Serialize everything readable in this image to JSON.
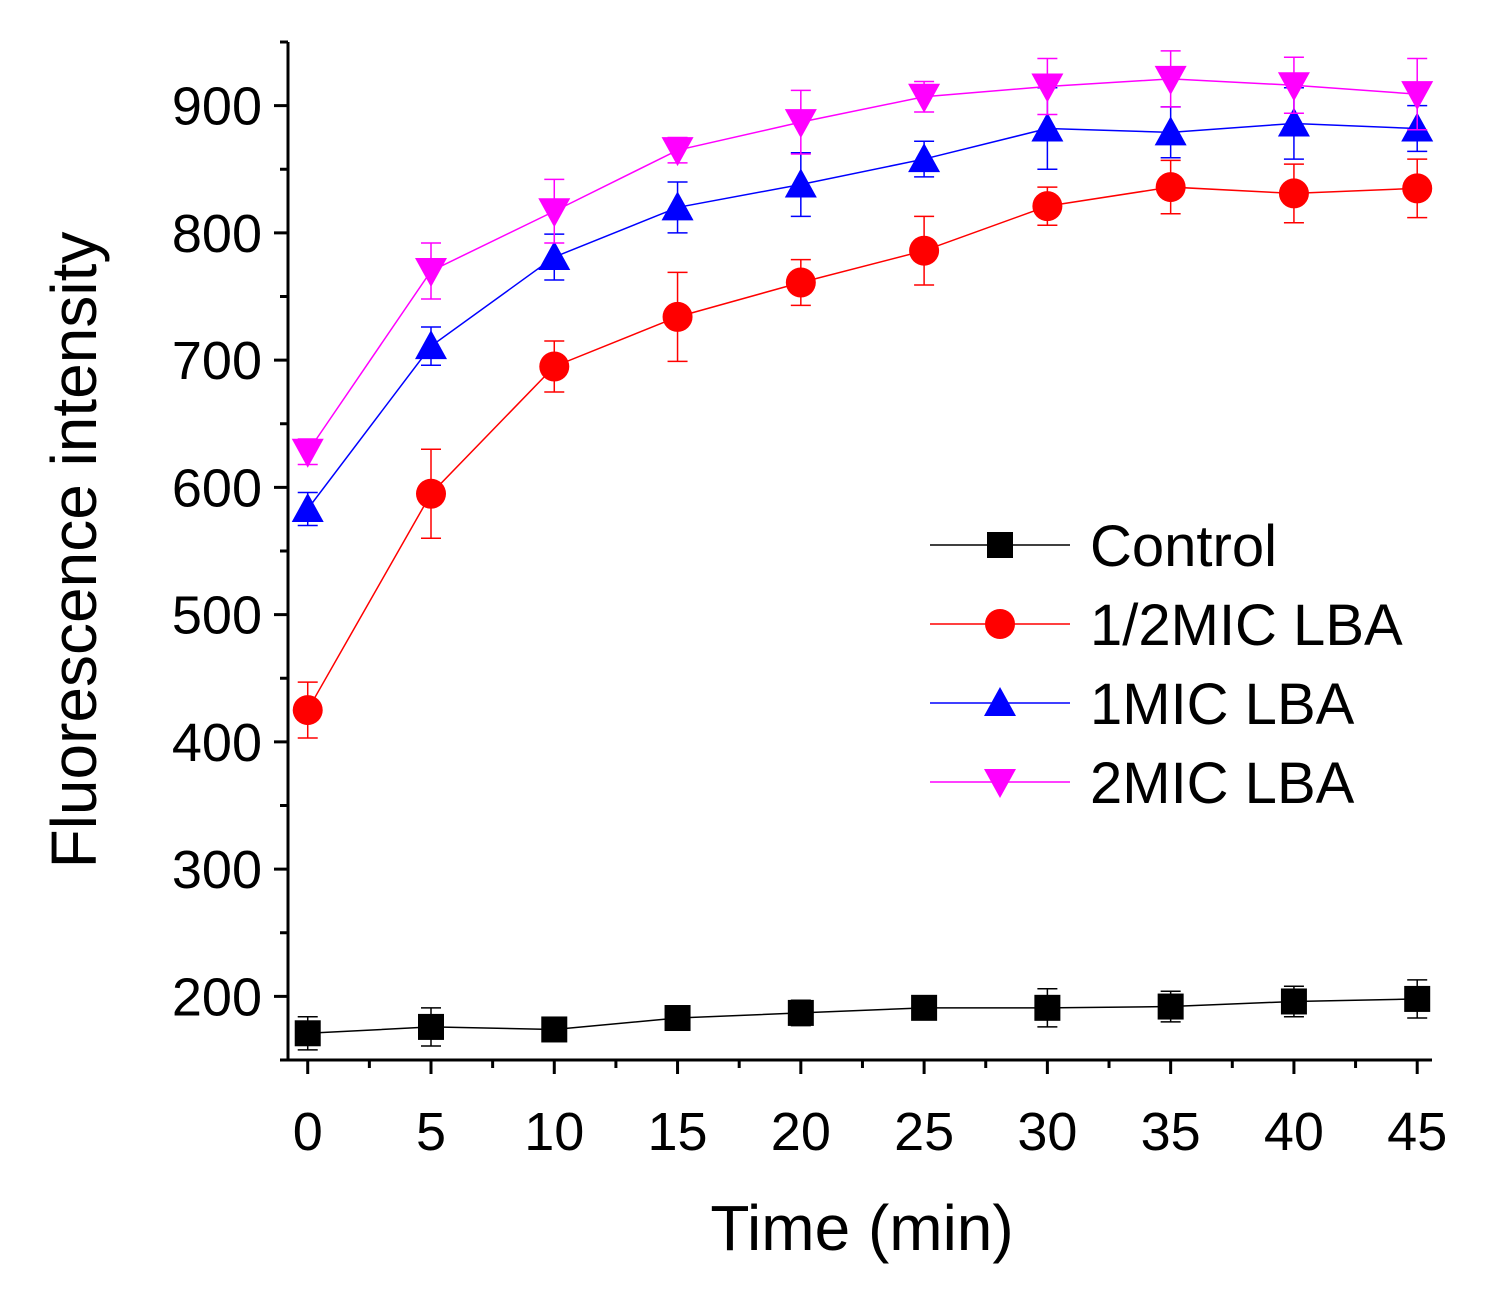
{
  "chart_data": {
    "type": "line",
    "title": "",
    "xlabel": "Time (min)",
    "ylabel": "Fluorescence intensity",
    "xlim": [
      -0.8,
      45.6
    ],
    "ylim": [
      150,
      950
    ],
    "xticks": [
      0,
      5,
      10,
      15,
      20,
      25,
      30,
      35,
      40,
      45
    ],
    "yticks": [
      200,
      300,
      400,
      500,
      600,
      700,
      800,
      900
    ],
    "grid": false,
    "legend_position": "center-right",
    "x": [
      0,
      5,
      10,
      15,
      20,
      25,
      30,
      35,
      40,
      45
    ],
    "series": [
      {
        "name": "Control",
        "color": "#000000",
        "marker": "square",
        "values": [
          171,
          176,
          174,
          183,
          187,
          191,
          191,
          192,
          196,
          198
        ],
        "errors": [
          13,
          15,
          8,
          9,
          10,
          9,
          15,
          12,
          12,
          15
        ]
      },
      {
        "name": "1/2MIC LBA",
        "color": "#ff0000",
        "marker": "circle",
        "values": [
          425,
          595,
          695,
          734,
          761,
          786,
          821,
          836,
          831,
          835
        ],
        "errors": [
          22,
          35,
          20,
          35,
          18,
          27,
          15,
          21,
          23,
          23
        ]
      },
      {
        "name": "1MIC LBA",
        "color": "#0000ff",
        "marker": "triangle-up",
        "values": [
          583,
          711,
          781,
          820,
          838,
          858,
          882,
          879,
          886,
          882
        ],
        "errors": [
          13,
          15,
          18,
          20,
          25,
          14,
          32,
          20,
          28,
          18
        ]
      },
      {
        "name": "2MIC LBA",
        "color": "#ff00ff",
        "marker": "triangle-down",
        "values": [
          628,
          770,
          817,
          865,
          887,
          907,
          915,
          921,
          916,
          909
        ],
        "errors": [
          10,
          22,
          25,
          10,
          25,
          12,
          22,
          22,
          22,
          28
        ]
      }
    ]
  }
}
